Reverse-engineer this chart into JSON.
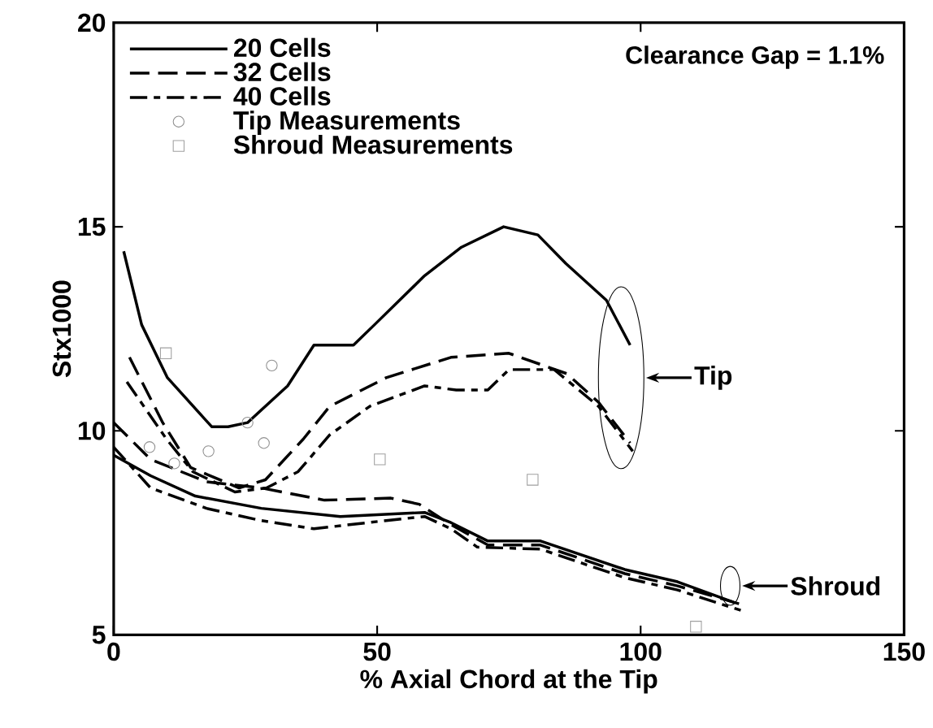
{
  "chart_data": {
    "type": "line",
    "xlabel": "% Axial Chord at the Tip",
    "ylabel": "Stx1000",
    "xlim": [
      0,
      150
    ],
    "ylim": [
      5,
      20
    ],
    "xticks": [
      0,
      50,
      100,
      150
    ],
    "yticks": [
      5,
      10,
      15,
      20
    ],
    "grid": false,
    "legend": "top left",
    "annotations": [
      "Clearance Gap = 1.1%",
      "Tip",
      "Shroud"
    ],
    "series": [
      {
        "name": "20 Cells",
        "color": "#000000",
        "line_style": "solid",
        "x": [
          1.9,
          5.3,
          10.2,
          18.6,
          21.7,
          25.4,
          33,
          38,
          45.5,
          49.5,
          59,
          66,
          74,
          80.5,
          85.8,
          93.5,
          98
        ],
        "values": [
          14.4,
          12.6,
          11.3,
          10.1,
          10.1,
          10.2,
          11.1,
          12.1,
          12.1,
          12.6,
          13.8,
          14.5,
          15,
          14.8,
          14.1,
          13.2,
          12.1
        ]
      },
      {
        "name": "32 Cells",
        "color": "#000000",
        "line_style": "dashed",
        "x": [
          3,
          9.3,
          14.6,
          23.8,
          28.8,
          36,
          41,
          51.7,
          64,
          75,
          86,
          92,
          98
        ],
        "values": [
          11.8,
          10.2,
          9.1,
          8.6,
          8.8,
          9.8,
          10.6,
          11.3,
          11.8,
          11.9,
          11.4,
          10.7,
          9.7
        ]
      },
      {
        "name": "40 Cells",
        "color": "#000000",
        "line_style": "dashdot",
        "x": [
          2.5,
          10,
          15,
          23,
          29,
          35,
          41,
          48.6,
          59,
          65,
          71,
          75,
          83.6,
          92,
          98.5
        ],
        "values": [
          11.2,
          9.8,
          9.0,
          8.5,
          8.6,
          9.0,
          9.9,
          10.6,
          11.1,
          11.0,
          11.0,
          11.5,
          11.5,
          10.6,
          9.5
        ]
      },
      {
        "color": "#000000",
        "line_style": "solid",
        "x": [
          0,
          7,
          15.5,
          28,
          43,
          59,
          64,
          71,
          81,
          97,
          107,
          117.6
        ],
        "values": [
          9.4,
          8.9,
          8.4,
          8.1,
          7.9,
          8.0,
          7.75,
          7.3,
          7.3,
          6.6,
          6.3,
          5.8
        ]
      },
      {
        "color": "#000000",
        "line_style": "dashed",
        "x": [
          0,
          7,
          17.6,
          28,
          40,
          52.6,
          58,
          64,
          71,
          81,
          97,
          107,
          119
        ],
        "values": [
          10.2,
          9.3,
          8.75,
          8.6,
          8.3,
          8.35,
          8.2,
          7.7,
          7.2,
          7.2,
          6.5,
          6.2,
          5.75
        ]
      },
      {
        "color": "#000000",
        "line_style": "dashdot",
        "x": [
          0,
          7,
          17.6,
          28,
          38,
          51.7,
          59,
          64,
          69,
          81,
          97,
          107,
          119
        ],
        "values": [
          9.6,
          8.6,
          8.1,
          7.8,
          7.6,
          7.8,
          7.9,
          7.6,
          7.15,
          7.1,
          6.4,
          6.1,
          5.6
        ]
      },
      {
        "name": "Tip Measurements",
        "type": "scatter",
        "marker": "circle",
        "color": "#909090",
        "x": [
          6.8,
          11.5,
          18,
          25.4,
          28.5,
          30
        ],
        "values": [
          9.6,
          9.2,
          9.5,
          10.2,
          9.7,
          11.6
        ]
      },
      {
        "name": "Shroud Measurements",
        "type": "scatter",
        "marker": "square",
        "color": "#a0a0a0",
        "x": [
          9.9,
          50.5,
          79.5,
          110.5
        ],
        "values": [
          11.9,
          9.3,
          8.8,
          5.2
        ]
      }
    ]
  }
}
